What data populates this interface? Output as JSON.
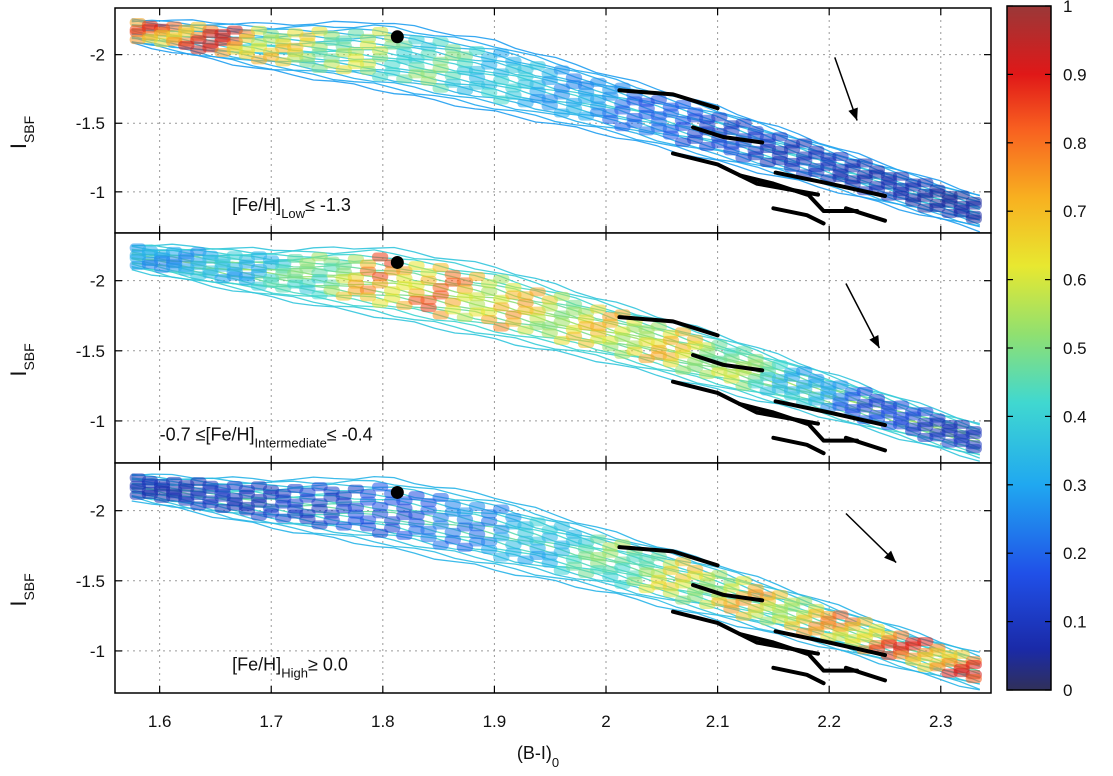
{
  "chart_data": {
    "type": "contour",
    "xlabel": "(B-I)",
    "xlabel_sub": "0",
    "ylabel": "I",
    "ylabel_sub": "SBF",
    "xlim": [
      1.56,
      2.345
    ],
    "ylim": [
      -2.34,
      -0.7
    ],
    "xticks": [
      "1.6",
      "1.7",
      "1.8",
      "1.9",
      "2",
      "2.1",
      "2.2",
      "2.3"
    ],
    "xtick_values": [
      1.6,
      1.7,
      1.8,
      1.9,
      2.0,
      2.1,
      2.2,
      2.3
    ],
    "yticks": [
      "-2",
      "-1.5",
      "-1"
    ],
    "ytick_values": [
      -2.0,
      -1.5,
      -1.0
    ],
    "grid": true,
    "colorbar": {
      "ticks": [
        "0",
        "0.1",
        "0.2",
        "0.3",
        "0.4",
        "0.5",
        "0.6",
        "0.7",
        "0.8",
        "0.9",
        "1"
      ],
      "tick_values": [
        0,
        0.1,
        0.2,
        0.3,
        0.4,
        0.5,
        0.6,
        0.7,
        0.8,
        0.9,
        1.0
      ],
      "colormap": "jet"
    },
    "reference_point": {
      "x": 1.813,
      "y": -2.13
    },
    "ridge_lines": [
      [
        [
          2.012,
          -1.74
        ],
        [
          2.06,
          -1.71
        ],
        [
          2.1,
          -1.61
        ]
      ],
      [
        [
          2.078,
          -1.47
        ],
        [
          2.105,
          -1.4
        ],
        [
          2.14,
          -1.36
        ]
      ],
      [
        [
          2.06,
          -1.28
        ],
        [
          2.1,
          -1.2
        ],
        [
          2.135,
          -1.06
        ],
        [
          2.19,
          -0.98
        ]
      ],
      [
        [
          2.12,
          -1.12
        ],
        [
          2.15,
          -1.06
        ],
        [
          2.18,
          -0.98
        ]
      ],
      [
        [
          2.152,
          -1.14
        ],
        [
          2.2,
          -1.06
        ],
        [
          2.25,
          -0.97
        ]
      ],
      [
        [
          2.18,
          -0.99
        ],
        [
          2.195,
          -0.86
        ],
        [
          2.225,
          -0.86
        ]
      ],
      [
        [
          2.15,
          -0.88
        ],
        [
          2.18,
          -0.83
        ],
        [
          2.195,
          -0.77
        ]
      ],
      [
        [
          2.215,
          -0.88
        ],
        [
          2.25,
          -0.79
        ]
      ]
    ],
    "panels": [
      {
        "annotation": {
          "pre": "[Fe/H]",
          "sub": "Low",
          "post": "≤ -1.3",
          "x": 1.665,
          "y": -0.86
        },
        "arrow": {
          "x1": 2.205,
          "y1": -1.98,
          "x2": 2.225,
          "y2": -1.52
        },
        "profile": [
          [
            1.56,
            0.82
          ],
          [
            1.62,
            0.95
          ],
          [
            1.66,
            0.98
          ],
          [
            1.7,
            0.72
          ],
          [
            1.75,
            0.66
          ],
          [
            1.8,
            0.6
          ],
          [
            1.83,
            0.55
          ],
          [
            1.87,
            0.5
          ],
          [
            1.92,
            0.4
          ],
          [
            1.97,
            0.33
          ],
          [
            2.02,
            0.25
          ],
          [
            2.08,
            0.17
          ],
          [
            2.14,
            0.12
          ],
          [
            2.2,
            0.1
          ],
          [
            2.26,
            0.08
          ],
          [
            2.33,
            0.06
          ]
        ]
      },
      {
        "annotation": {
          "pre": "-0.7 ≤[Fe/H]",
          "sub": "Intermediate",
          "post": "≤ -0.4",
          "x": 1.6,
          "y": -0.86
        },
        "arrow": {
          "x1": 2.215,
          "y1": -1.98,
          "x2": 2.245,
          "y2": -1.52
        },
        "profile": [
          [
            1.56,
            0.3
          ],
          [
            1.62,
            0.35
          ],
          [
            1.68,
            0.4
          ],
          [
            1.74,
            0.55
          ],
          [
            1.8,
            0.88
          ],
          [
            1.84,
            0.86
          ],
          [
            1.88,
            0.8
          ],
          [
            1.92,
            0.76
          ],
          [
            1.97,
            0.7
          ],
          [
            2.02,
            0.76
          ],
          [
            2.08,
            0.72
          ],
          [
            2.13,
            0.55
          ],
          [
            2.18,
            0.38
          ],
          [
            2.23,
            0.2
          ],
          [
            2.29,
            0.14
          ],
          [
            2.33,
            0.1
          ]
        ]
      },
      {
        "annotation": {
          "pre": "[Fe/H]",
          "sub": "High",
          "post": "≥ 0.0",
          "x": 1.665,
          "y": -0.86
        },
        "arrow": {
          "x1": 2.215,
          "y1": -1.98,
          "x2": 2.26,
          "y2": -1.63
        },
        "profile": [
          [
            1.56,
            0.08
          ],
          [
            1.62,
            0.1
          ],
          [
            1.68,
            0.12
          ],
          [
            1.74,
            0.14
          ],
          [
            1.8,
            0.18
          ],
          [
            1.86,
            0.25
          ],
          [
            1.92,
            0.35
          ],
          [
            1.98,
            0.5
          ],
          [
            2.03,
            0.62
          ],
          [
            2.08,
            0.72
          ],
          [
            2.13,
            0.76
          ],
          [
            2.18,
            0.75
          ],
          [
            2.22,
            0.85
          ],
          [
            2.26,
            0.9
          ],
          [
            2.3,
            0.92
          ],
          [
            2.33,
            0.93
          ]
        ]
      }
    ],
    "band": {
      "top": [
        [
          1.575,
          -2.26
        ],
        [
          1.7,
          -2.22
        ],
        [
          1.8,
          -2.24
        ],
        [
          1.9,
          -2.1
        ],
        [
          2.0,
          -1.86
        ],
        [
          2.1,
          -1.62
        ],
        [
          2.2,
          -1.34
        ],
        [
          2.28,
          -1.12
        ],
        [
          2.335,
          -0.98
        ]
      ],
      "bottom": [
        [
          1.575,
          -2.08
        ],
        [
          1.7,
          -1.88
        ],
        [
          1.8,
          -1.74
        ],
        [
          1.9,
          -1.58
        ],
        [
          2.0,
          -1.42
        ],
        [
          2.1,
          -1.22
        ],
        [
          2.2,
          -1.02
        ],
        [
          2.28,
          -0.84
        ],
        [
          2.335,
          -0.72
        ]
      ]
    }
  }
}
